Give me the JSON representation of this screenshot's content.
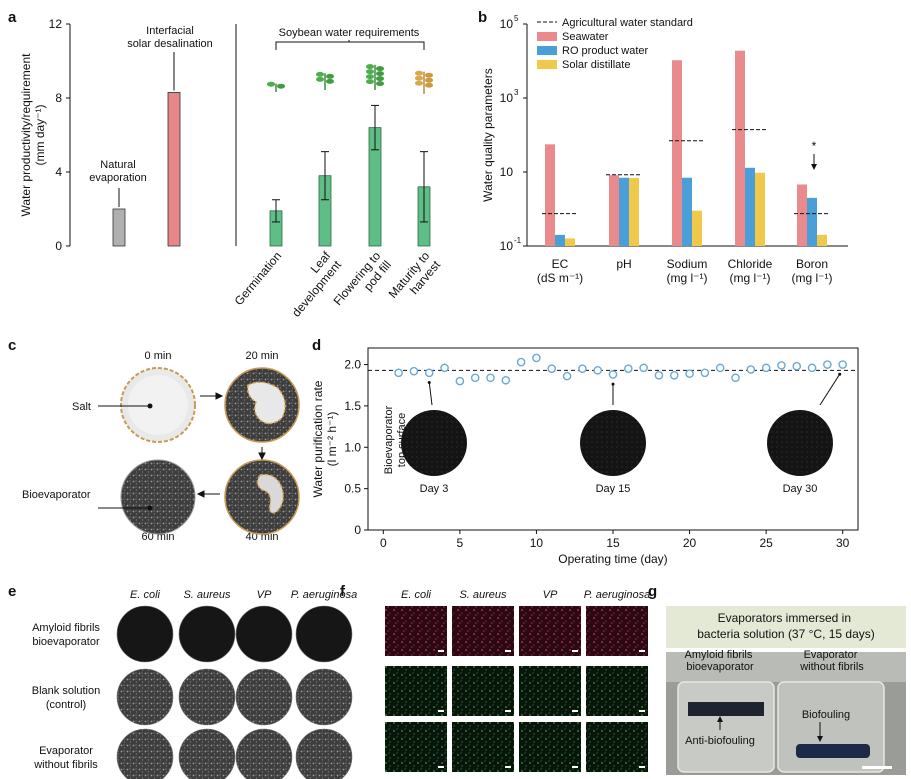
{
  "panel_letters": {
    "a": "a",
    "b": "b",
    "c": "c",
    "d": "d",
    "e": "e",
    "f": "f",
    "g": "g"
  },
  "colors": {
    "natural": "#b0b0b0",
    "solar": "#e8878a",
    "soybean": "#5fbe86",
    "seawater": "#e98a8c",
    "ro": "#4a9fd8",
    "distillate": "#f0c84a",
    "marker": "#6aa8d8"
  },
  "chart_data": [
    {
      "panel": "a",
      "type": "bar",
      "ylabel": "Water productivity/requirement\n(mm day⁻¹)",
      "ylim": [
        0,
        12
      ],
      "yticks": [
        "0",
        "4",
        "8",
        "12"
      ],
      "bars": [
        {
          "category": "Natural evaporation",
          "value": 2.0,
          "label": "Natural\nevaporation"
        },
        {
          "category": "Interfacial solar desalination",
          "value": 8.3,
          "label": "Interfacial\nsolar desalination"
        }
      ],
      "group_label": "Soybean water requirements",
      "soy_stages": [
        {
          "category": "Germination",
          "value": 1.9,
          "err_low": 1.3,
          "err_high": 2.5
        },
        {
          "category": "Leaf\ndevelopment",
          "value": 3.8,
          "err_low": 2.5,
          "err_high": 5.1
        },
        {
          "category": "Flowering to\npod fill",
          "value": 6.4,
          "err_low": 5.2,
          "err_high": 7.6
        },
        {
          "category": "Maturity to\nharvest",
          "value": 3.2,
          "err_low": 1.3,
          "err_high": 5.1
        }
      ]
    },
    {
      "panel": "b",
      "type": "bar",
      "ylabel": "Water quality parameters",
      "yscale": "log",
      "ylim": [
        0.1,
        100000
      ],
      "yticks": [
        {
          "base": "10",
          "exp": "-1"
        },
        {
          "base": "10",
          "exp": ""
        },
        {
          "base": "10",
          "exp": "3"
        },
        {
          "base": "10",
          "exp": "5"
        }
      ],
      "categories": [
        "EC\n(dS m⁻¹)",
        "pH",
        "Sodium\n(mg l⁻¹)",
        "Chloride\n(mg l⁻¹)",
        "Boron\n(mg l⁻¹)"
      ],
      "series": [
        {
          "name": "Seawater",
          "values": [
            56,
            8.2,
            10500,
            19000,
            4.6
          ]
        },
        {
          "name": "RO product water",
          "values": [
            0.2,
            7.0,
            7.0,
            13,
            2.0
          ]
        },
        {
          "name": "Solar distillate",
          "values": [
            0.16,
            6.9,
            0.9,
            9.5,
            0.2
          ]
        }
      ],
      "standard": {
        "name": "Agricultural water standard",
        "values": [
          0.75,
          8.4,
          70,
          140,
          0.75
        ]
      },
      "annotation": "*",
      "legend_position": "top-left"
    },
    {
      "panel": "d",
      "type": "scatter",
      "ylabel": "Water purification rate\n(l m⁻² h⁻¹)",
      "xlabel": "Operating time (day)",
      "xlim": [
        -1,
        31
      ],
      "ylim": [
        0,
        2.2
      ],
      "xticks": [
        "0",
        "5",
        "10",
        "15",
        "20",
        "25",
        "30"
      ],
      "yticks": [
        "0",
        "0.5",
        "1.0",
        "1.5",
        "2.0"
      ],
      "x": [
        1,
        2,
        3,
        4,
        5,
        6,
        7,
        8,
        9,
        10,
        11,
        12,
        13,
        14,
        15,
        16,
        17,
        18,
        19,
        20,
        21,
        22,
        23,
        24,
        25,
        26,
        27,
        28,
        29,
        30
      ],
      "y": [
        1.9,
        1.92,
        1.9,
        1.96,
        1.8,
        1.84,
        1.84,
        1.81,
        2.03,
        2.08,
        1.95,
        1.86,
        1.95,
        1.93,
        1.88,
        1.95,
        1.96,
        1.87,
        1.87,
        1.89,
        1.9,
        1.96,
        1.84,
        1.94,
        1.96,
        1.99,
        1.98,
        1.96,
        2.0,
        2.0
      ],
      "reference_y": 1.93,
      "inset_title": "Bioevaporator\ntop surface",
      "insets": [
        "Day 3",
        "Day 15",
        "Day 30"
      ]
    }
  ],
  "panel_c": {
    "times": [
      "0 min",
      "20 min",
      "40 min",
      "60 min"
    ],
    "salt_label": "Salt",
    "surface_label": "Bioevaporator\ntop surface"
  },
  "panel_e": {
    "columns": [
      "E. coli",
      "S. aureus",
      "VP",
      "P. aeruginosa"
    ],
    "rows": [
      "Amyloid fibrils\nbioevaporator",
      "Blank solution\n(control)",
      "Evaporator\nwithout fibrils"
    ]
  },
  "panel_f": {
    "columns": [
      "E. coli",
      "S. aureus",
      "VP",
      "P. aeruginosa"
    ]
  },
  "panel_g": {
    "title": "Evaporators immersed in\nbacteria solution (37 °C, 15 days)",
    "left_label": "Amyloid fibrils\nbioevaporator",
    "right_label": "Evaporator\nwithout fibrils",
    "anti_label": "Anti-biofouling",
    "bio_label": "Biofouling"
  }
}
